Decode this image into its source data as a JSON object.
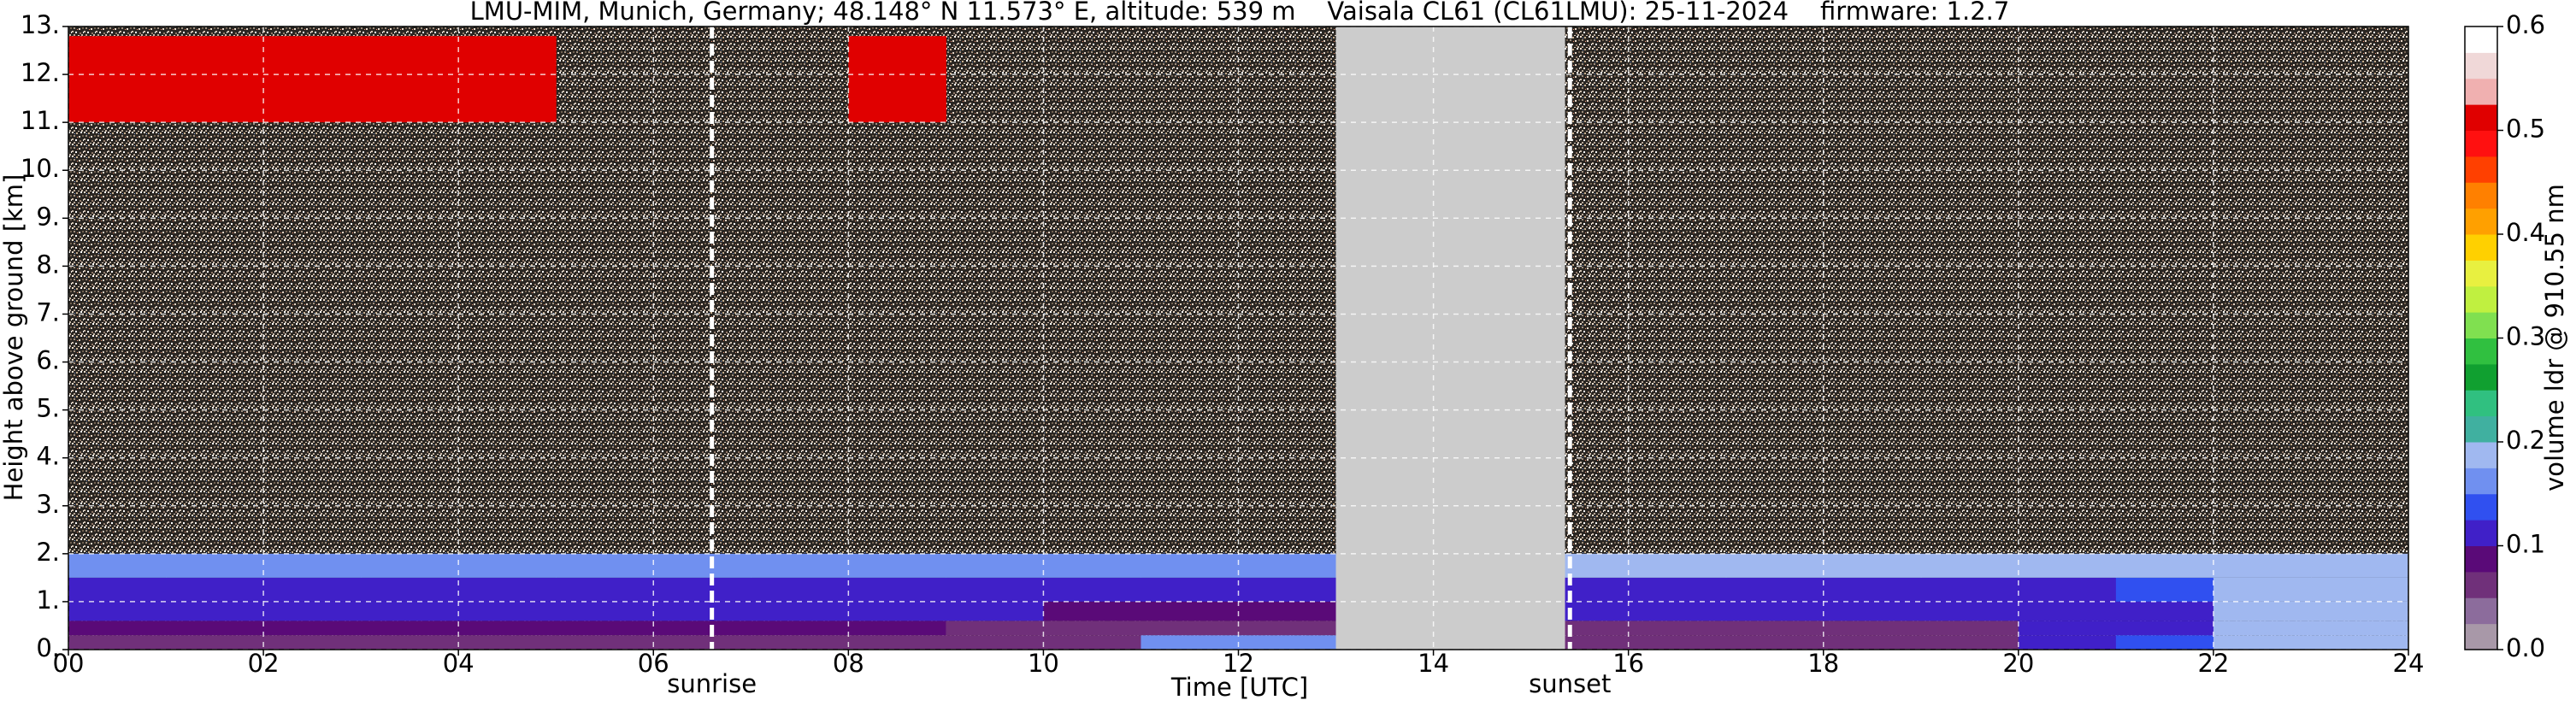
{
  "chart_data": {
    "type": "heatmap",
    "title": "LMU-MIM, Munich, Germany; 48.148° N 11.573° E, altitude: 539 m    Vaisala CL61 (CL61LMU): 25-11-2024    firmware: 1.2.7",
    "xlabel": "Time [UTC]",
    "ylabel": "Height above ground [km]",
    "colorbar_label": "volume ldr @ 910.55 nm",
    "xlim": [
      0,
      24
    ],
    "ylim": [
      0,
      13
    ],
    "xticks": [
      {
        "value": 0,
        "label": "00"
      },
      {
        "value": 2,
        "label": "02"
      },
      {
        "value": 4,
        "label": "04"
      },
      {
        "value": 6,
        "label": "06"
      },
      {
        "value": 8,
        "label": "08"
      },
      {
        "value": 10,
        "label": "10"
      },
      {
        "value": 12,
        "label": "12"
      },
      {
        "value": 14,
        "label": "14"
      },
      {
        "value": 16,
        "label": "16"
      },
      {
        "value": 18,
        "label": "18"
      },
      {
        "value": 20,
        "label": "20"
      },
      {
        "value": 22,
        "label": "22"
      },
      {
        "value": 24,
        "label": "24"
      }
    ],
    "yticks": [
      {
        "value": 0,
        "label": "0."
      },
      {
        "value": 1,
        "label": "1."
      },
      {
        "value": 2,
        "label": "2."
      },
      {
        "value": 3,
        "label": "3."
      },
      {
        "value": 4,
        "label": "4."
      },
      {
        "value": 5,
        "label": "5."
      },
      {
        "value": 6,
        "label": "6."
      },
      {
        "value": 7,
        "label": "7."
      },
      {
        "value": 8,
        "label": "8."
      },
      {
        "value": 9,
        "label": "9."
      },
      {
        "value": 10,
        "label": "10."
      },
      {
        "value": 11,
        "label": "11."
      },
      {
        "value": 12,
        "label": "12."
      },
      {
        "value": 13,
        "label": "13."
      }
    ],
    "grid": true,
    "clim": [
      0,
      0.6
    ],
    "cticks": [
      {
        "value": 0,
        "label": "0.0"
      },
      0.1,
      0.2,
      0.3,
      0.4,
      0.5,
      0.6
    ],
    "colors": [
      "#a898a8",
      "#8c6c9c",
      "#70307a",
      "#5a0a78",
      "#4020c8",
      "#3050f0",
      "#7090f0",
      "#a0b8f0",
      "#40b0a0",
      "#30c080",
      "#10a030",
      "#30c040",
      "#80e050",
      "#c0f040",
      "#e8f040",
      "#ffd000",
      "#ffa000",
      "#ff8000",
      "#ff4000",
      "#ff1010",
      "#e00000",
      "#f0b0b0",
      "#f0d8d8",
      "#ffffff"
    ],
    "x_edges": [
      0,
      1,
      2,
      3,
      4,
      5,
      6,
      7,
      8,
      9,
      10,
      11,
      12,
      13,
      14,
      15,
      16,
      17,
      18,
      19,
      20,
      21,
      22,
      23,
      24
    ],
    "y_edges": [
      0,
      0.3,
      0.6,
      1,
      1.5,
      2,
      3,
      11,
      12.8
    ],
    "z": [
      [
        0.07,
        0.07,
        0.07,
        0.07,
        0.07,
        0.07,
        0.07,
        0.07,
        0.07,
        0.07,
        0.07,
        0.15,
        0.15,
        null,
        null,
        0.07,
        0.07,
        0.07,
        0.07,
        0.07,
        0.12,
        0.13,
        0.18,
        0.18
      ],
      [
        0.09,
        0.09,
        0.09,
        0.09,
        0.09,
        0.09,
        0.09,
        0.09,
        0.09,
        0.07,
        0.06,
        0.06,
        0.06,
        null,
        null,
        0.07,
        0.06,
        0.06,
        0.06,
        0.06,
        0.1,
        0.12,
        0.18,
        0.18
      ],
      [
        0.1,
        0.1,
        0.1,
        0.1,
        0.1,
        0.1,
        0.1,
        0.1,
        0.1,
        0.1,
        0.08,
        0.08,
        0.08,
        null,
        null,
        0.1,
        0.1,
        0.1,
        0.1,
        0.1,
        0.1,
        0.1,
        0.18,
        0.18
      ],
      [
        0.1,
        0.1,
        0.1,
        0.1,
        0.1,
        0.1,
        0.1,
        0.1,
        0.1,
        0.1,
        0.1,
        0.1,
        0.1,
        null,
        null,
        0.12,
        0.12,
        0.12,
        0.12,
        0.12,
        0.12,
        0.13,
        0.18,
        0.18
      ],
      [
        0.16,
        0.16,
        0.16,
        0.16,
        0.16,
        0.16,
        0.16,
        0.16,
        0.16,
        0.16,
        0.16,
        0.16,
        0.16,
        null,
        null,
        0.18,
        0.18,
        0.18,
        0.18,
        0.18,
        0.18,
        0.18,
        0.19,
        0.19
      ],
      [
        null,
        null,
        null,
        null,
        null,
        null,
        null,
        null,
        null,
        null,
        null,
        null,
        null,
        null,
        null,
        null,
        null,
        null,
        null,
        null,
        null,
        null,
        null,
        null
      ],
      [
        null,
        null,
        null,
        null,
        null,
        null,
        null,
        null,
        null,
        null,
        null,
        null,
        null,
        null,
        null,
        null,
        null,
        null,
        null,
        null,
        null,
        null,
        null,
        null
      ],
      [
        0.5,
        0.5,
        0.5,
        0.5,
        0.5,
        null,
        null,
        null,
        0.5,
        null,
        null,
        null,
        null,
        null,
        null,
        null,
        null,
        null,
        null,
        null,
        null,
        null,
        null,
        null
      ]
    ],
    "gap": [
      13,
      15.35
    ],
    "markers": [
      {
        "label": "sunrise",
        "x": 6.6
      },
      {
        "label": "sunset",
        "x": 15.4
      }
    ]
  }
}
